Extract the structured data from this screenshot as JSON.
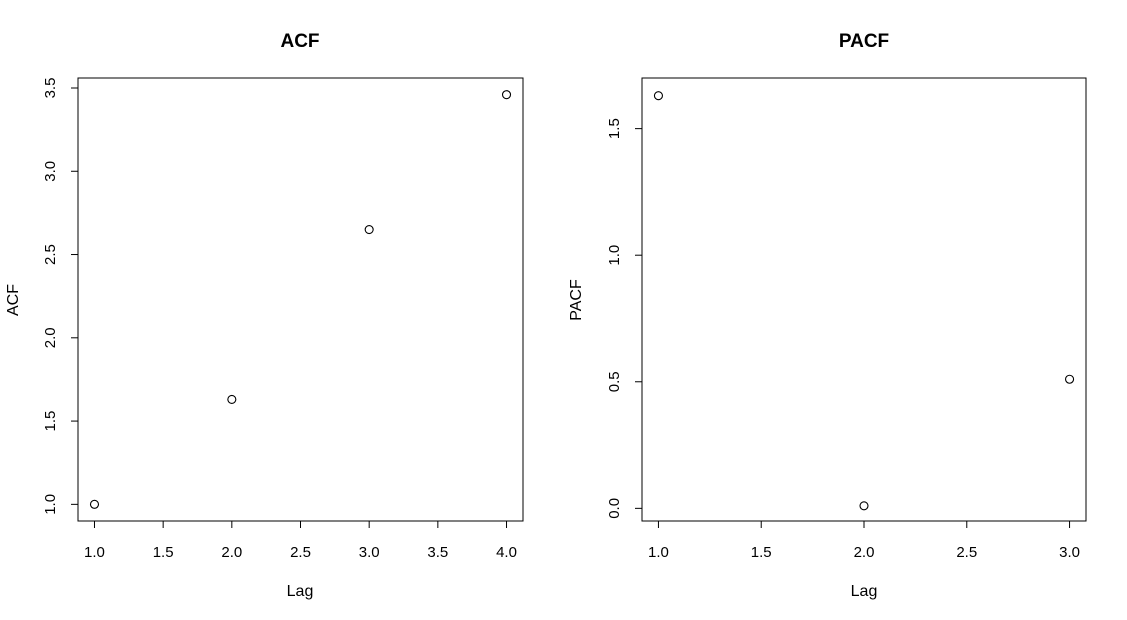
{
  "chart_data": [
    {
      "type": "scatter",
      "title": "ACF",
      "xlabel": "Lag",
      "ylabel": "ACF",
      "x": [
        1,
        2,
        3,
        4
      ],
      "y": [
        1.0,
        1.63,
        2.65,
        3.46
      ],
      "xlim": [
        0.88,
        4.12
      ],
      "ylim": [
        0.9,
        3.56
      ],
      "xticks": [
        "1.0",
        "1.5",
        "2.0",
        "2.5",
        "3.0",
        "3.5",
        "4.0"
      ],
      "yticks": [
        "1.0",
        "1.5",
        "2.0",
        "2.5",
        "3.0",
        "3.5"
      ],
      "grid": false
    },
    {
      "type": "scatter",
      "title": "PACF",
      "xlabel": "Lag",
      "ylabel": "PACF",
      "x": [
        1,
        2,
        3
      ],
      "y": [
        1.63,
        0.01,
        0.51
      ],
      "xlim": [
        0.92,
        3.08
      ],
      "ylim": [
        -0.05,
        1.7
      ],
      "xticks": [
        "1.0",
        "1.5",
        "2.0",
        "2.5",
        "3.0"
      ],
      "yticks": [
        "0.0",
        "0.5",
        "1.0",
        "1.5"
      ],
      "grid": false
    }
  ]
}
